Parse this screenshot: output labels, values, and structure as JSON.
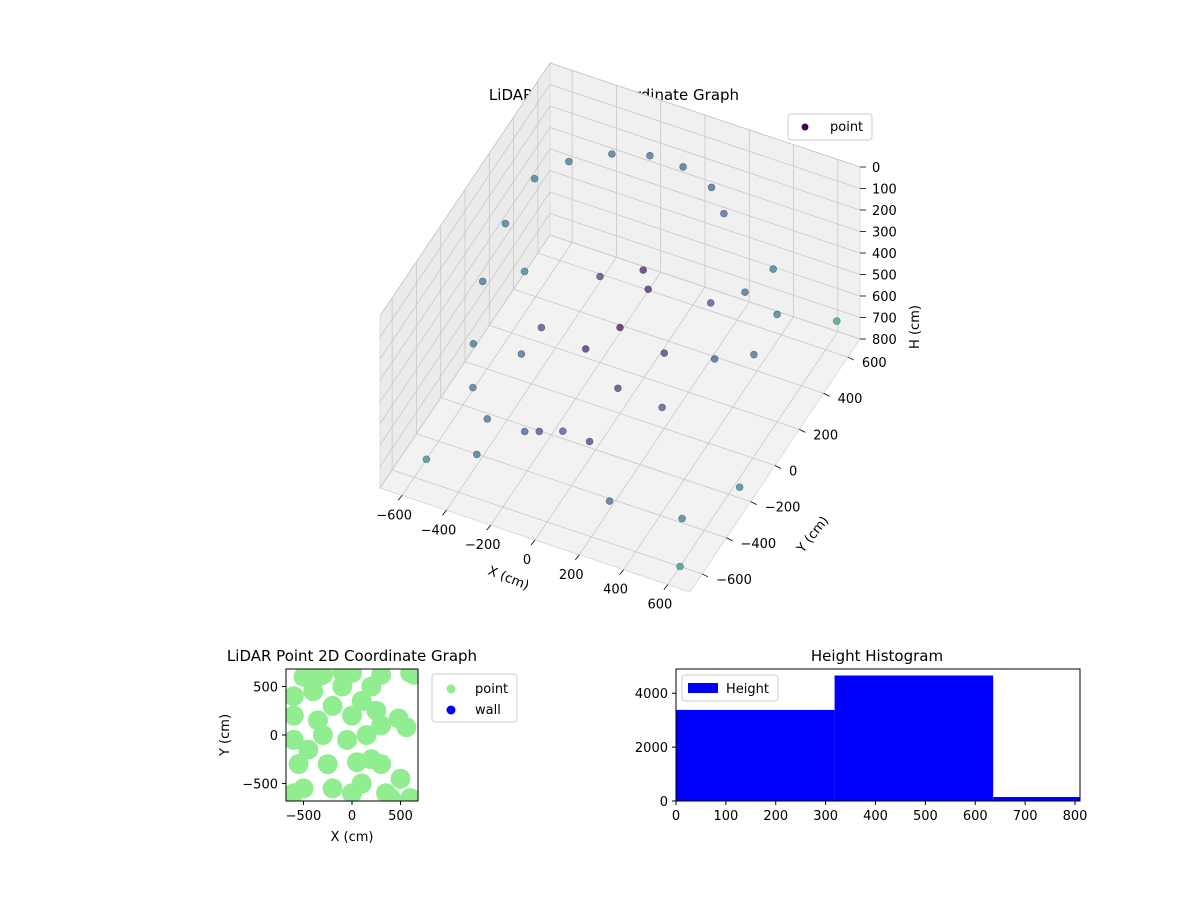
{
  "chart_data": [
    {
      "type": "scatter3d",
      "title": "LiDAR Point 3D Coordinate Graph",
      "xlabel": "X (cm)",
      "ylabel": "Y (cm)",
      "zlabel": "H (cm)",
      "xlim": [
        -700,
        700
      ],
      "ylim": [
        -700,
        700
      ],
      "zlim": [
        800,
        0
      ],
      "x_ticks": [
        "−600",
        "−400",
        "−200",
        "0",
        "200",
        "400",
        "600"
      ],
      "y_ticks": [
        "−600",
        "−400",
        "−200",
        "0",
        "200",
        "400",
        "600"
      ],
      "z_ticks": [
        "0",
        "100",
        "200",
        "300",
        "400",
        "500",
        "600",
        "700",
        "800"
      ],
      "colormap": "viridis",
      "legend": {
        "position": "top-right",
        "entries": [
          {
            "name": "point",
            "color": "#440154"
          }
        ]
      },
      "grid": true,
      "series": [
        {
          "name": "point",
          "points": [
            [
              -550,
              300,
              150
            ],
            [
              -450,
              400,
              120
            ],
            [
              -300,
              480,
              100
            ],
            [
              -150,
              520,
              90
            ],
            [
              0,
              520,
              90
            ],
            [
              150,
              480,
              100
            ],
            [
              250,
              400,
              120
            ],
            [
              -600,
              150,
              250
            ],
            [
              -620,
              0,
              400
            ],
            [
              -580,
              -150,
              550
            ],
            [
              -500,
              -300,
              600
            ],
            [
              -380,
              -400,
              620
            ],
            [
              -200,
              -420,
              600
            ],
            [
              -50,
              -380,
              580
            ],
            [
              50,
              100,
              200
            ],
            [
              100,
              50,
              230
            ],
            [
              0,
              0,
              400
            ],
            [
              200,
              0,
              450
            ],
            [
              400,
              50,
              450
            ],
            [
              550,
              100,
              420
            ],
            [
              300,
              200,
              350
            ],
            [
              600,
              200,
              300
            ],
            [
              500,
              350,
              250
            ],
            [
              -100,
              -100,
              450
            ],
            [
              -300,
              -100,
              420
            ],
            [
              -200,
              200,
              400
            ],
            [
              100,
              -200,
              480
            ],
            [
              300,
              -200,
              500
            ],
            [
              -200,
              -300,
              700
            ],
            [
              0,
              -250,
              720
            ],
            [
              -400,
              -450,
              750
            ],
            [
              200,
              -450,
              760
            ],
            [
              400,
              300,
              350
            ],
            [
              -600,
              -500,
              800
            ],
            [
              600,
              -600,
              800
            ],
            [
              -650,
              400,
              700
            ],
            [
              650,
              600,
              650
            ],
            [
              500,
              -400,
              780
            ],
            [
              -500,
              100,
              780
            ],
            [
              650,
              -200,
              750
            ]
          ]
        }
      ]
    },
    {
      "type": "scatter",
      "title": "LiDAR Point 2D Coordinate Graph",
      "xlabel": "X (cm)",
      "ylabel": "Y (cm)",
      "xlim": [
        -680,
        680
      ],
      "ylim": [
        -680,
        680
      ],
      "x_ticks": [
        -500,
        0,
        500
      ],
      "y_ticks": [
        -500,
        0,
        500
      ],
      "legend": {
        "position": "right",
        "entries": [
          {
            "name": "point",
            "color": "#90ee90"
          },
          {
            "name": "wall",
            "color": "#0000ff"
          }
        ]
      },
      "series": [
        {
          "name": "point",
          "color": "#90ee90",
          "points": [
            [
              -500,
              600
            ],
            [
              -300,
              620
            ],
            [
              0,
              640
            ],
            [
              300,
              620
            ],
            [
              600,
              640
            ],
            [
              -600,
              400
            ],
            [
              -400,
              450
            ],
            [
              -100,
              500
            ],
            [
              200,
              500
            ],
            [
              -600,
              200
            ],
            [
              -350,
              150
            ],
            [
              0,
              200
            ],
            [
              250,
              250
            ],
            [
              -600,
              -50
            ],
            [
              -300,
              0
            ],
            [
              -50,
              -50
            ],
            [
              150,
              0
            ],
            [
              -550,
              -300
            ],
            [
              -250,
              -300
            ],
            [
              50,
              -280
            ],
            [
              300,
              -300
            ],
            [
              -500,
              -550
            ],
            [
              -200,
              -550
            ],
            [
              100,
              -500
            ],
            [
              350,
              -600
            ],
            [
              500,
              -450
            ],
            [
              600,
              -650
            ],
            [
              480,
              170
            ],
            [
              560,
              80
            ],
            [
              640,
              620
            ],
            [
              -100,
              650
            ],
            [
              -200,
              300
            ],
            [
              -450,
              -150
            ],
            [
              0,
              -600
            ],
            [
              400,
              -650
            ],
            [
              200,
              -250
            ],
            [
              100,
              350
            ],
            [
              -600,
              -600
            ],
            [
              300,
              100
            ],
            [
              -350,
              600
            ]
          ]
        },
        {
          "name": "wall",
          "color": "#0000ff",
          "points": []
        }
      ]
    },
    {
      "type": "bar",
      "title": "Height Histogram",
      "xlim": [
        0,
        810
      ],
      "ylim": [
        0,
        4900
      ],
      "x_ticks": [
        0,
        100,
        200,
        300,
        400,
        500,
        600,
        700,
        800
      ],
      "y_ticks": [
        0,
        2000,
        4000
      ],
      "legend": {
        "position": "top-left",
        "entries": [
          {
            "name": "Height",
            "color": "#0000ff"
          }
        ]
      },
      "series": [
        {
          "name": "Height",
          "color": "#0000ff",
          "bins": [
            {
              "start": 0,
              "end": 318,
              "count": 3380
            },
            {
              "start": 318,
              "end": 636,
              "count": 4660
            },
            {
              "start": 636,
              "end": 810,
              "count": 150
            }
          ]
        }
      ]
    }
  ]
}
